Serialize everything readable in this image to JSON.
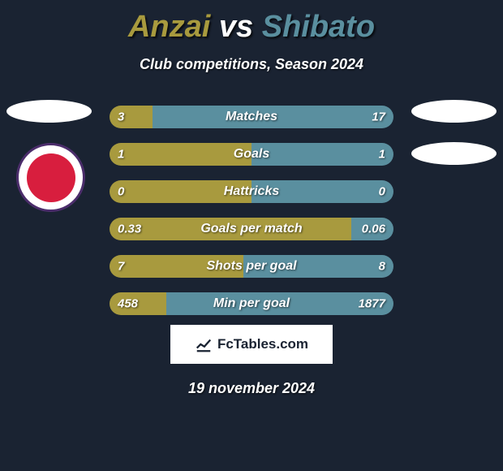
{
  "title_player1": "Anzai",
  "title_vs": "vs",
  "title_player2": "Shibato",
  "title_color_p1": "#a89a3e",
  "title_color_vs": "#ffffff",
  "title_color_p2": "#5a8f9f",
  "subtitle": "Club competitions, Season 2024",
  "bar_color_left": "#a89a3e",
  "bar_color_right": "#5a8f9f",
  "stats": [
    {
      "label": "Matches",
      "val_left": "3",
      "val_right": "17",
      "pct_left": 15
    },
    {
      "label": "Goals",
      "val_left": "1",
      "val_right": "1",
      "pct_left": 50
    },
    {
      "label": "Hattricks",
      "val_left": "0",
      "val_right": "0",
      "pct_left": 50
    },
    {
      "label": "Goals per match",
      "val_left": "0.33",
      "val_right": "0.06",
      "pct_left": 85
    },
    {
      "label": "Shots per goal",
      "val_left": "7",
      "val_right": "8",
      "pct_left": 47
    },
    {
      "label": "Min per goal",
      "val_left": "458",
      "val_right": "1877",
      "pct_left": 20
    }
  ],
  "logo_text": "FcTables.com",
  "date": "19 november 2024"
}
